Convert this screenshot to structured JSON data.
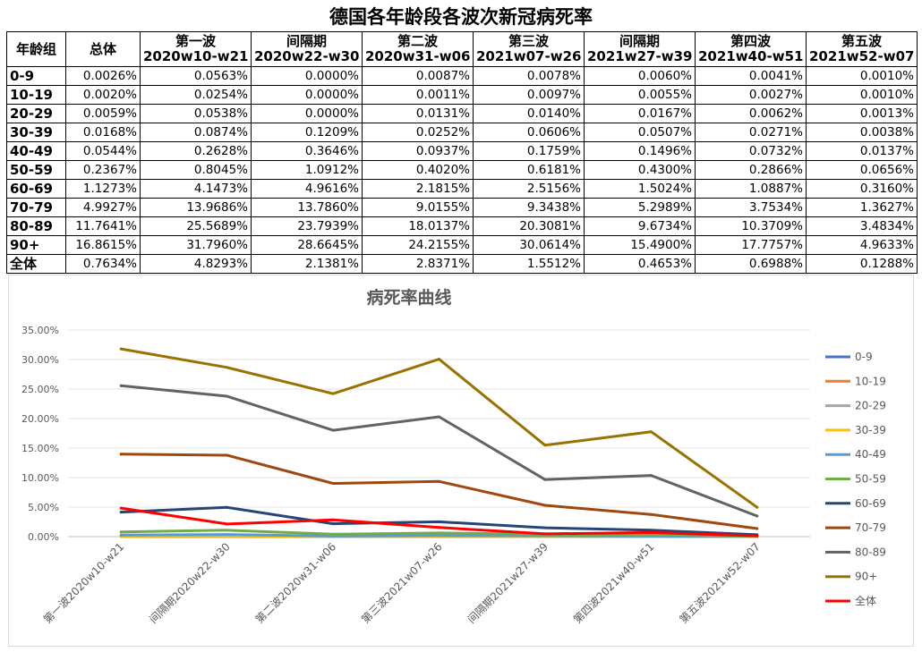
{
  "page": {
    "title": "德国各年龄段各波次新冠病死率"
  },
  "table": {
    "header_age": "年龄组",
    "header_total": "总体",
    "waves": [
      {
        "name": "第一波",
        "period": "2020w10-w21"
      },
      {
        "name": "间隔期",
        "period": "2020w22-w30"
      },
      {
        "name": "第二波",
        "period": "2020w31-w06"
      },
      {
        "name": "第三波",
        "period": "2021w07-w26"
      },
      {
        "name": "间隔期",
        "period": "2021w27-w39"
      },
      {
        "name": "第四波",
        "period": "2021w40-w51"
      },
      {
        "name": "第五波",
        "period": "2021w52-w07"
      }
    ],
    "rows": [
      {
        "age": "0-9",
        "total": "0.0026%",
        "cells": [
          "0.0563%",
          "0.0000%",
          "0.0087%",
          "0.0078%",
          "0.0060%",
          "0.0041%",
          "0.0010%"
        ]
      },
      {
        "age": "10-19",
        "total": "0.0020%",
        "cells": [
          "0.0254%",
          "0.0000%",
          "0.0011%",
          "0.0097%",
          "0.0055%",
          "0.0027%",
          "0.0010%"
        ]
      },
      {
        "age": "20-29",
        "total": "0.0059%",
        "cells": [
          "0.0538%",
          "0.0000%",
          "0.0131%",
          "0.0140%",
          "0.0167%",
          "0.0062%",
          "0.0013%"
        ]
      },
      {
        "age": "30-39",
        "total": "0.0168%",
        "cells": [
          "0.0874%",
          "0.1209%",
          "0.0252%",
          "0.0606%",
          "0.0507%",
          "0.0271%",
          "0.0038%"
        ]
      },
      {
        "age": "40-49",
        "total": "0.0544%",
        "cells": [
          "0.2628%",
          "0.3646%",
          "0.0937%",
          "0.1759%",
          "0.1496%",
          "0.0732%",
          "0.0137%"
        ]
      },
      {
        "age": "50-59",
        "total": "0.2367%",
        "cells": [
          "0.8045%",
          "1.0912%",
          "0.4020%",
          "0.6181%",
          "0.4300%",
          "0.2866%",
          "0.0656%"
        ]
      },
      {
        "age": "60-69",
        "total": "1.1273%",
        "cells": [
          "4.1473%",
          "4.9616%",
          "2.1815%",
          "2.5156%",
          "1.5024%",
          "1.0887%",
          "0.3160%"
        ]
      },
      {
        "age": "70-79",
        "total": "4.9927%",
        "cells": [
          "13.9686%",
          "13.7860%",
          "9.0155%",
          "9.3438%",
          "5.2989%",
          "3.7534%",
          "1.3627%"
        ]
      },
      {
        "age": "80-89",
        "total": "11.7641%",
        "cells": [
          "25.5689%",
          "23.7939%",
          "18.0137%",
          "20.3081%",
          "9.6734%",
          "10.3709%",
          "3.4834%"
        ]
      },
      {
        "age": "90+",
        "total": "16.8615%",
        "cells": [
          "31.7960%",
          "28.6645%",
          "24.2155%",
          "30.0614%",
          "15.4900%",
          "17.7757%",
          "4.9633%"
        ]
      },
      {
        "age": "全体",
        "total": "0.7634%",
        "cells": [
          "4.8293%",
          "2.1381%",
          "2.8371%",
          "1.5512%",
          "0.4653%",
          "0.6988%",
          "0.1288%"
        ]
      }
    ]
  },
  "chart_data": {
    "type": "line",
    "title": "病死率曲线",
    "xlabel": "",
    "ylabel": "",
    "ylim": [
      0,
      35
    ],
    "y_ticks": [
      "0.00%",
      "5.00%",
      "10.00%",
      "15.00%",
      "20.00%",
      "25.00%",
      "30.00%",
      "35.00%"
    ],
    "grid": true,
    "legend_position": "right",
    "categories": [
      "第一波2020w10-w21",
      "间隔期2020w22-w30",
      "第二波2020w31-w06",
      "第三波2021w07-w26",
      "间隔期2021w27-w39",
      "第四波2021w40-w51",
      "第五波2021w52-w07"
    ],
    "series": [
      {
        "name": "0-9",
        "color": "#4472c4",
        "values": [
          0.0563,
          0.0,
          0.0087,
          0.0078,
          0.006,
          0.0041,
          0.001
        ]
      },
      {
        "name": "10-19",
        "color": "#ed7d31",
        "values": [
          0.0254,
          0.0,
          0.0011,
          0.0097,
          0.0055,
          0.0027,
          0.001
        ]
      },
      {
        "name": "20-29",
        "color": "#a5a5a5",
        "values": [
          0.0538,
          0.0,
          0.0131,
          0.014,
          0.0167,
          0.0062,
          0.0013
        ]
      },
      {
        "name": "30-39",
        "color": "#ffc000",
        "values": [
          0.0874,
          0.1209,
          0.0252,
          0.0606,
          0.0507,
          0.0271,
          0.0038
        ]
      },
      {
        "name": "40-49",
        "color": "#5b9bd5",
        "values": [
          0.2628,
          0.3646,
          0.0937,
          0.1759,
          0.1496,
          0.0732,
          0.0137
        ]
      },
      {
        "name": "50-59",
        "color": "#70ad47",
        "values": [
          0.8045,
          1.0912,
          0.402,
          0.6181,
          0.43,
          0.2866,
          0.0656
        ]
      },
      {
        "name": "60-69",
        "color": "#264478",
        "values": [
          4.1473,
          4.9616,
          2.1815,
          2.5156,
          1.5024,
          1.0887,
          0.316
        ]
      },
      {
        "name": "70-79",
        "color": "#9e480e",
        "values": [
          13.9686,
          13.786,
          9.0155,
          9.3438,
          5.2989,
          3.7534,
          1.3627
        ]
      },
      {
        "name": "80-89",
        "color": "#636363",
        "values": [
          25.5689,
          23.7939,
          18.0137,
          20.3081,
          9.6734,
          10.3709,
          3.4834
        ]
      },
      {
        "name": "90+",
        "color": "#997300",
        "values": [
          31.796,
          28.6645,
          24.2155,
          30.0614,
          15.49,
          17.7757,
          4.9633
        ]
      },
      {
        "name": "全体",
        "color": "#ff0000",
        "values": [
          4.8293,
          2.1381,
          2.8371,
          1.5512,
          0.4653,
          0.6988,
          0.1288
        ]
      }
    ]
  }
}
